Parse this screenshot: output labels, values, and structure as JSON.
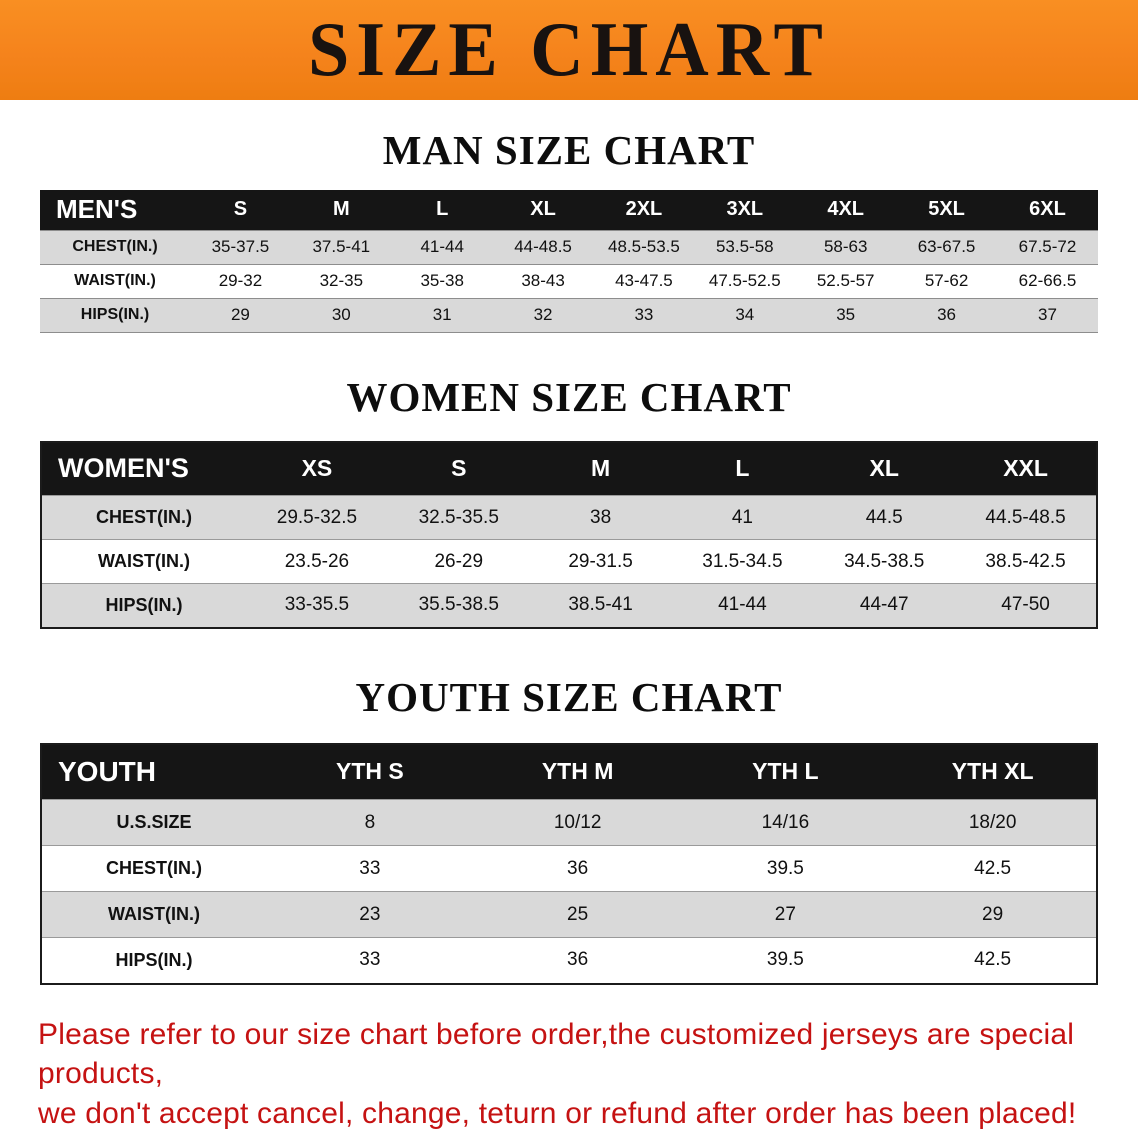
{
  "banner": {
    "title": "SIZE CHART"
  },
  "sections": [
    {
      "heading": "MAN SIZE CHART",
      "table": {
        "header": [
          "MEN'S",
          "S",
          "M",
          "L",
          "XL",
          "2XL",
          "3XL",
          "4XL",
          "5XL",
          "6XL"
        ],
        "rows": [
          [
            "CHEST(IN.)",
            "35-37.5",
            "37.5-41",
            "41-44",
            "44-48.5",
            "48.5-53.5",
            "53.5-58",
            "58-63",
            "63-67.5",
            "67.5-72"
          ],
          [
            "WAIST(IN.)",
            "29-32",
            "32-35",
            "35-38",
            "38-43",
            "43-47.5",
            "47.5-52.5",
            "52.5-57",
            "57-62",
            "62-66.5"
          ],
          [
            "HIPS(IN.)",
            "29",
            "30",
            "31",
            "32",
            "33",
            "34",
            "35",
            "36",
            "37"
          ]
        ]
      }
    },
    {
      "heading": "WOMEN SIZE CHART",
      "table": {
        "header": [
          "WOMEN'S",
          "XS",
          "S",
          "M",
          "L",
          "XL",
          "XXL"
        ],
        "rows": [
          [
            "CHEST(IN.)",
            "29.5-32.5",
            "32.5-35.5",
            "38",
            "41",
            "44.5",
            "44.5-48.5"
          ],
          [
            "WAIST(IN.)",
            "23.5-26",
            "26-29",
            "29-31.5",
            "31.5-34.5",
            "34.5-38.5",
            "38.5-42.5"
          ],
          [
            "HIPS(IN.)",
            "33-35.5",
            "35.5-38.5",
            "38.5-41",
            "41-44",
            "44-47",
            "47-50"
          ]
        ]
      }
    },
    {
      "heading": "YOUTH SIZE CHART",
      "table": {
        "header": [
          "YOUTH",
          "YTH S",
          "YTH M",
          "YTH L",
          "YTH XL"
        ],
        "rows": [
          [
            "U.S.SIZE",
            "8",
            "10/12",
            "14/16",
            "18/20"
          ],
          [
            "CHEST(IN.)",
            "33",
            "36",
            "39.5",
            "42.5"
          ],
          [
            "WAIST(IN.)",
            "23",
            "25",
            "27",
            "29"
          ],
          [
            "HIPS(IN.)",
            "33",
            "36",
            "39.5",
            "42.5"
          ]
        ]
      }
    }
  ],
  "disclaimer": {
    "line1": "Please refer to our size chart before order,the customized jerseys are special products,",
    "line2": "we don't accept cancel, change, teturn or refund after order has been placed!"
  },
  "colors": {
    "banner_bg": "#f5831c",
    "table_header_bg": "#151515",
    "shade_row": "#d9d9d9",
    "disclaimer_red": "#c51212"
  }
}
